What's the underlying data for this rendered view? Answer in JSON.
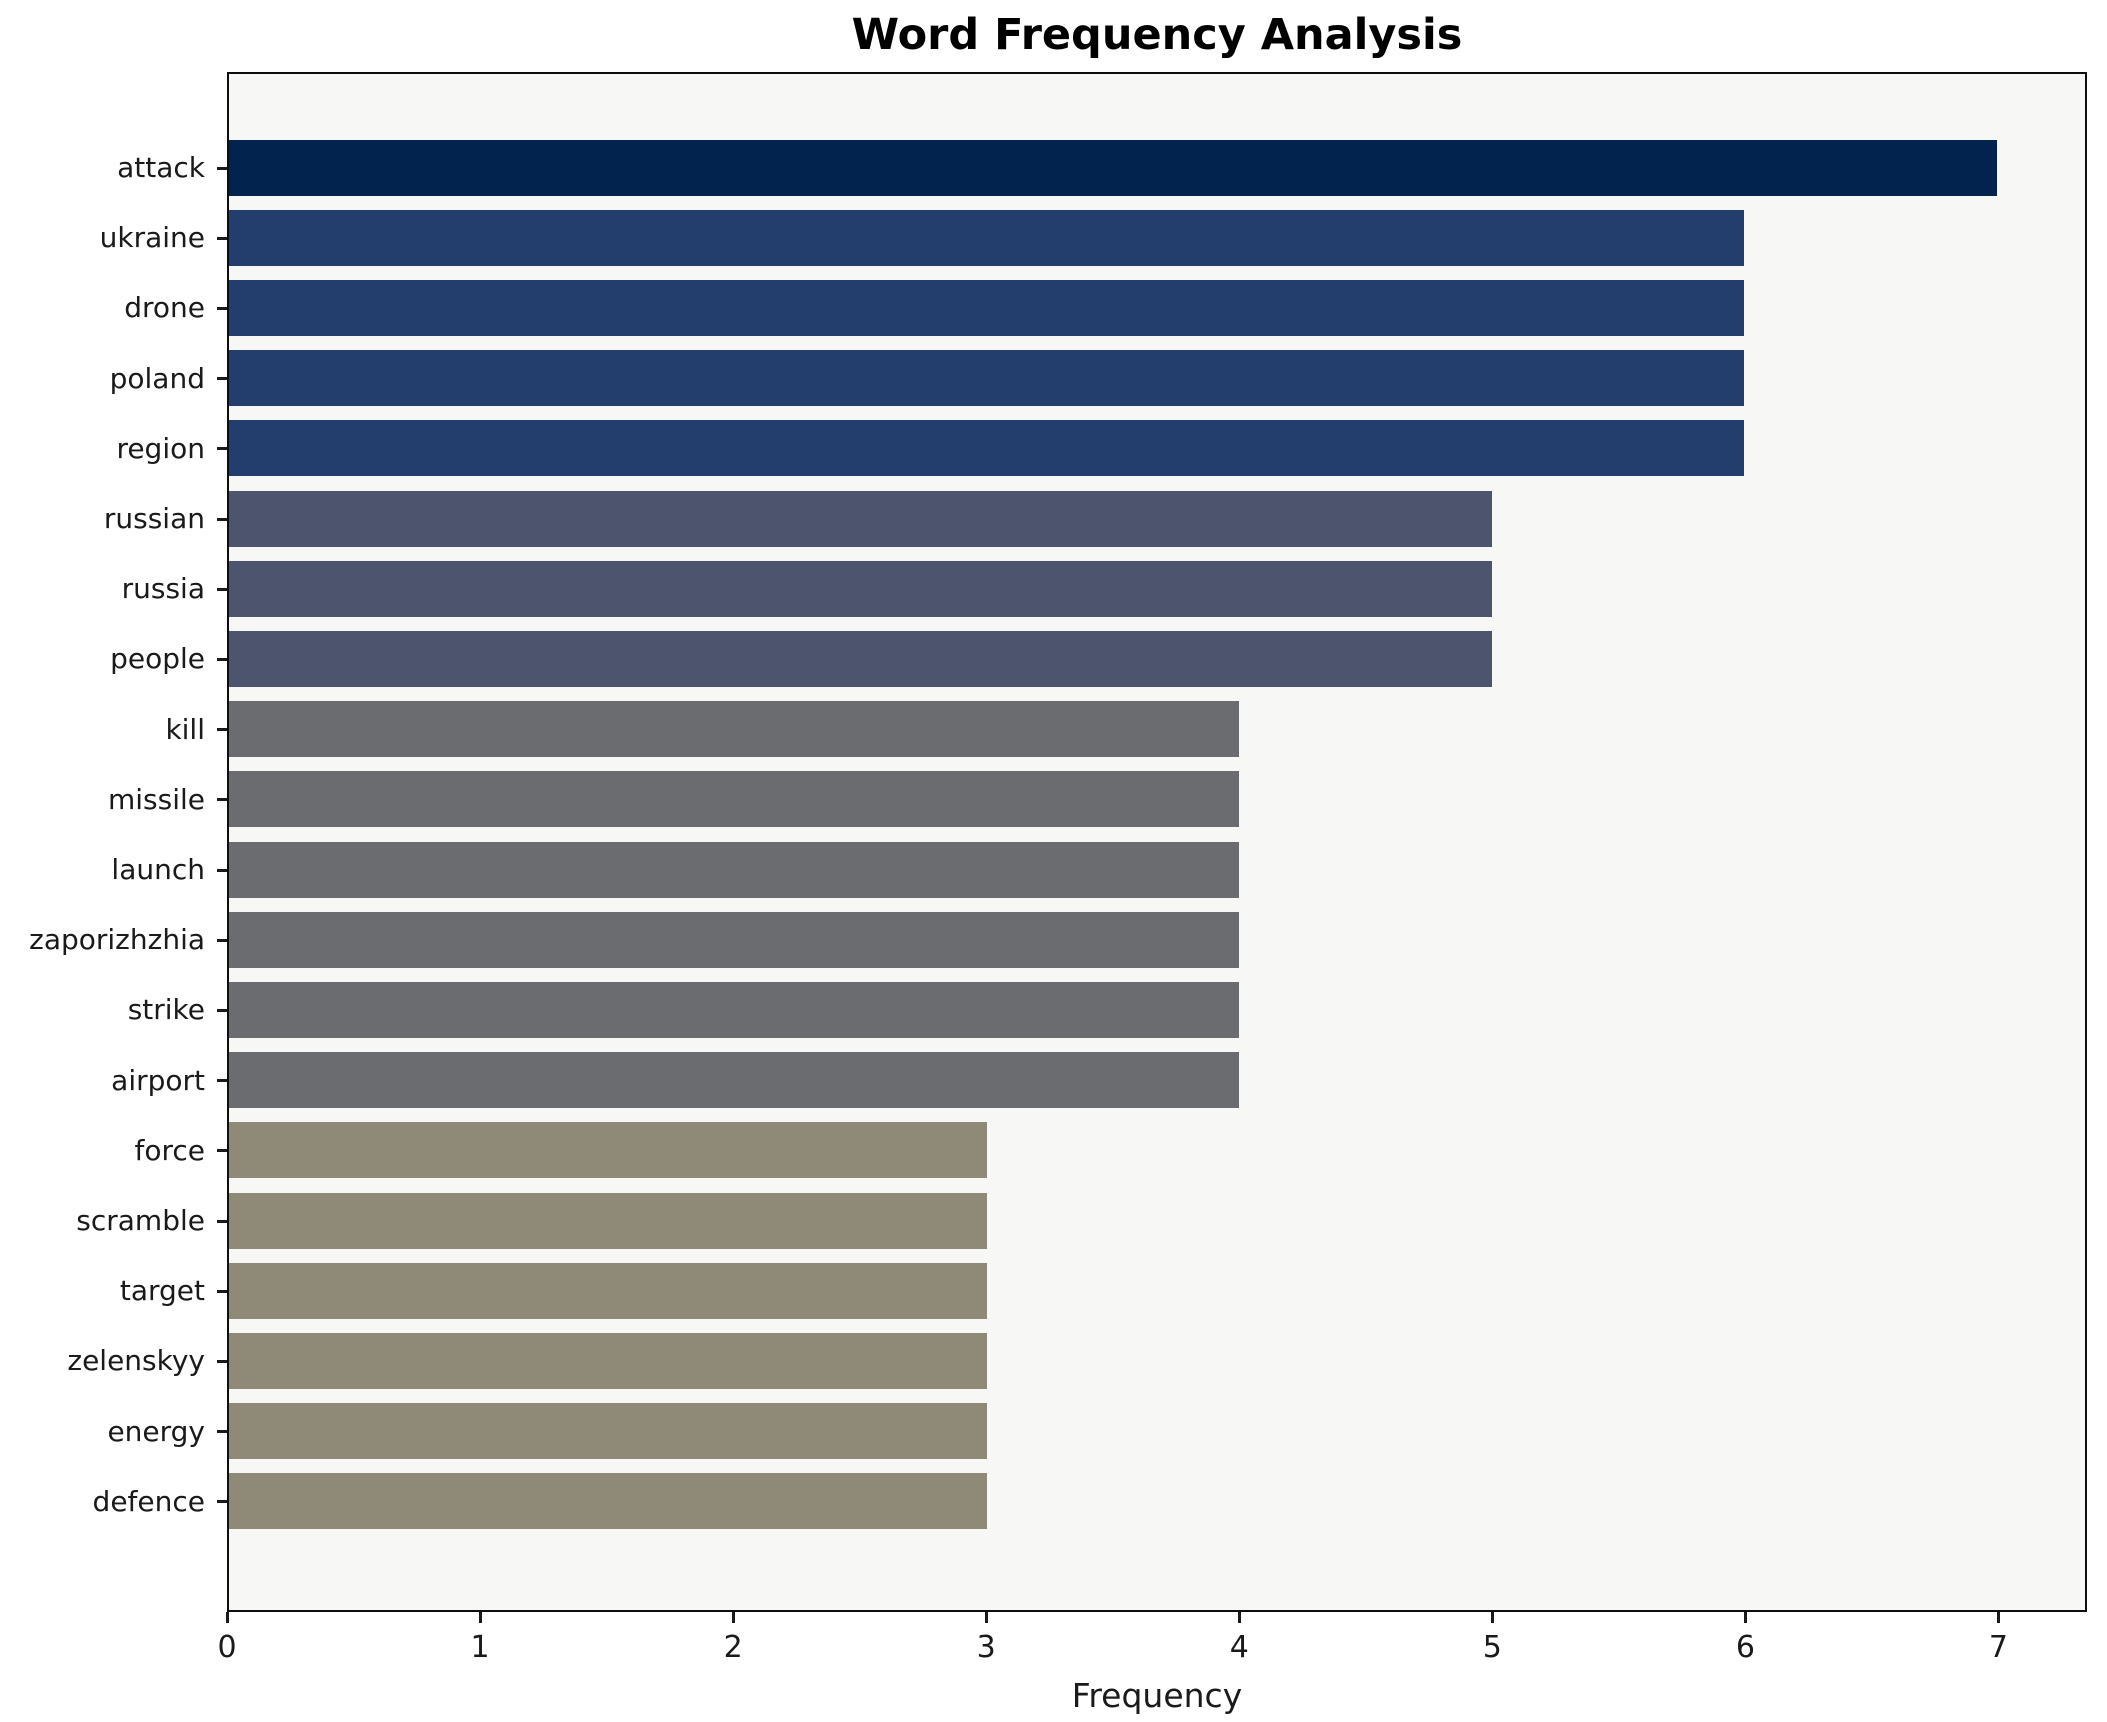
{
  "title": "Word Frequency Analysis",
  "axis": {
    "xlabel": "Frequency",
    "xtick_labels": [
      "0",
      "1",
      "2",
      "3",
      "4",
      "5",
      "6",
      "7"
    ]
  },
  "colors": {
    "figure_background": "#ffffff",
    "plot_background": "#f7f7f5",
    "spine": "#0e0e0e",
    "value_7": "#02234d",
    "value_6": "#233d6c",
    "value_5": "#4d556e",
    "value_4": "#6b6c6f",
    "value_3": "#8f8977"
  },
  "chart_data": {
    "type": "bar",
    "orientation": "horizontal",
    "title": "Word Frequency Analysis",
    "xlabel": "Frequency",
    "ylabel": "",
    "xlim": [
      0,
      7.35
    ],
    "xticks": [
      0,
      1,
      2,
      3,
      4,
      5,
      6,
      7
    ],
    "grid": false,
    "legend": false,
    "categories": [
      "attack",
      "ukraine",
      "drone",
      "poland",
      "region",
      "russian",
      "russia",
      "people",
      "kill",
      "missile",
      "launch",
      "zaporizhzhia",
      "strike",
      "airport",
      "force",
      "scramble",
      "target",
      "zelenskyy",
      "energy",
      "defence"
    ],
    "values": [
      7,
      6,
      6,
      6,
      6,
      5,
      5,
      5,
      4,
      4,
      4,
      4,
      4,
      4,
      3,
      3,
      3,
      3,
      3,
      3
    ],
    "bar_colors": [
      "#02234d",
      "#233d6c",
      "#233d6c",
      "#233d6c",
      "#233d6c",
      "#4d556e",
      "#4d556e",
      "#4d556e",
      "#6b6c6f",
      "#6b6c6f",
      "#6b6c6f",
      "#6b6c6f",
      "#6b6c6f",
      "#6b6c6f",
      "#8f8977",
      "#8f8977",
      "#8f8977",
      "#8f8977",
      "#8f8977",
      "#8f8977"
    ]
  }
}
